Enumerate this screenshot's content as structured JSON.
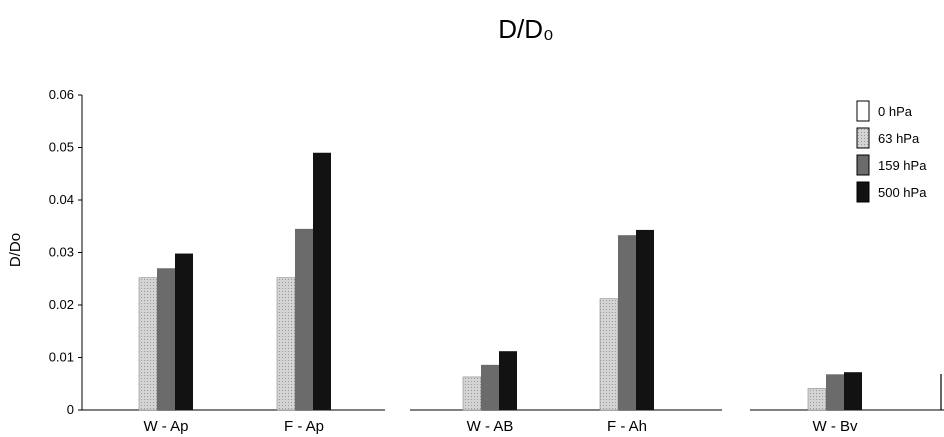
{
  "chart_data": {
    "type": "bar",
    "title": "D/D₀",
    "xlabel": "",
    "ylabel": "D/Do",
    "ylim": [
      0,
      0.06
    ],
    "yticks": [
      "0",
      "0.01",
      "0.02",
      "0.03",
      "0.04",
      "0.05",
      "0.06"
    ],
    "grid": false,
    "legend_position": "top-right",
    "categories": [
      "W - Ap",
      "F - Ap",
      "W - AB",
      "F - Ah",
      "W - Bv"
    ],
    "series": [
      {
        "name": "0 hPa",
        "values": [
          0,
          0,
          0,
          0,
          0
        ],
        "color": "#ffffff"
      },
      {
        "name": "63 hPa",
        "values": [
          0.0252,
          0.0252,
          0.0063,
          0.0212,
          0.0041
        ],
        "color": "#c9c9c9"
      },
      {
        "name": "159 hPa",
        "values": [
          0.027,
          0.0345,
          0.0086,
          0.0333,
          0.0068
        ],
        "color": "#6e6e6e"
      },
      {
        "name": "500 hPa",
        "values": [
          0.0298,
          0.049,
          0.0112,
          0.0343,
          0.0072
        ],
        "color": "#111111"
      }
    ]
  }
}
